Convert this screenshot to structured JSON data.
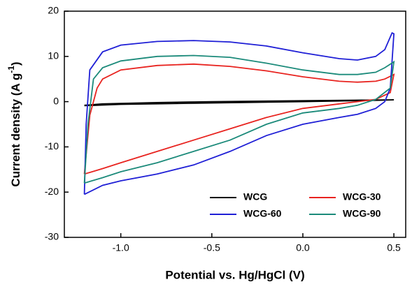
{
  "chart_data": {
    "type": "line",
    "xlabel": "Potential vs. Hg/HgCl (V)",
    "ylabel": "Current density (A g",
    "ylabel_superscript": "-1",
    "ylabel_end": ")",
    "xlim": [
      -1.31,
      0.565
    ],
    "ylim": [
      -30,
      20
    ],
    "xticks": [
      {
        "value": -1,
        "label": "-1.0"
      },
      -0.5,
      {
        "value": 0,
        "label": "0.0"
      },
      0.5
    ],
    "yticks": [
      -30,
      -20,
      -10,
      0,
      10,
      20
    ],
    "legend": "lower right",
    "series": [
      {
        "name": "WCG",
        "color": "#000000",
        "x": [
          -1.2,
          -1.1,
          -0.8,
          -0.5,
          0,
          0.5,
          0.4,
          0,
          -0.5,
          -1.0,
          -1.2
        ],
        "values": [
          -0.8,
          -0.5,
          -0.2,
          0,
          0.2,
          0.4,
          0.3,
          0,
          -0.3,
          -0.6,
          -0.9
        ]
      },
      {
        "name": "WCG-30",
        "color": "#e8231f",
        "x": [
          -1.2,
          -1.17,
          -1.13,
          -1.1,
          -1.0,
          -0.8,
          -0.6,
          -0.4,
          -0.2,
          0,
          0.2,
          0.3,
          0.4,
          0.45,
          0.5,
          0.48,
          0.4,
          0.3,
          0.2,
          0,
          -0.2,
          -0.4,
          -0.6,
          -0.8,
          -1.0,
          -1.1,
          -1.2
        ],
        "values": [
          -16,
          -3,
          3,
          5,
          7,
          8,
          8.3,
          7.8,
          6.8,
          5.5,
          4.5,
          4.3,
          4.5,
          5,
          6,
          2,
          0.5,
          0,
          -0.5,
          -1.5,
          -3.5,
          -6,
          -8.5,
          -11,
          -13.5,
          -14.8,
          -16
        ]
      },
      {
        "name": "WCG-60",
        "color": "#1f1fd6",
        "x": [
          -1.2,
          -1.19,
          -1.17,
          -1.1,
          -1.0,
          -0.8,
          -0.6,
          -0.4,
          -0.2,
          0,
          0.2,
          0.3,
          0.4,
          0.45,
          0.49,
          0.5,
          0.48,
          0.45,
          0.4,
          0.3,
          0.2,
          0,
          -0.2,
          -0.4,
          -0.6,
          -0.8,
          -1.0,
          -1.1,
          -1.2
        ],
        "values": [
          -20.5,
          -5,
          7,
          11,
          12.5,
          13.3,
          13.5,
          13.2,
          12.3,
          10.8,
          9.5,
          9.2,
          10,
          11.5,
          15.2,
          15,
          3,
          0,
          -1.5,
          -2.8,
          -3.5,
          -5,
          -7.5,
          -11,
          -14,
          -16,
          -17.5,
          -18.5,
          -20.5
        ]
      },
      {
        "name": "WCG-90",
        "color": "#1b8a7a",
        "x": [
          -1.2,
          -1.18,
          -1.15,
          -1.1,
          -1.0,
          -0.8,
          -0.6,
          -0.4,
          -0.2,
          0,
          0.2,
          0.3,
          0.4,
          0.45,
          0.5,
          0.48,
          0.4,
          0.3,
          0.2,
          0,
          -0.2,
          -0.4,
          -0.6,
          -0.8,
          -1.0,
          -1.1,
          -1.2
        ],
        "values": [
          -18,
          -5,
          5,
          7.5,
          9,
          10,
          10.2,
          9.8,
          8.5,
          7,
          6,
          6,
          6.5,
          7.5,
          8.8,
          3,
          0.5,
          -0.8,
          -1.5,
          -2.5,
          -5,
          -8.5,
          -11,
          -13.5,
          -15.5,
          -16.8,
          -18
        ]
      }
    ]
  }
}
